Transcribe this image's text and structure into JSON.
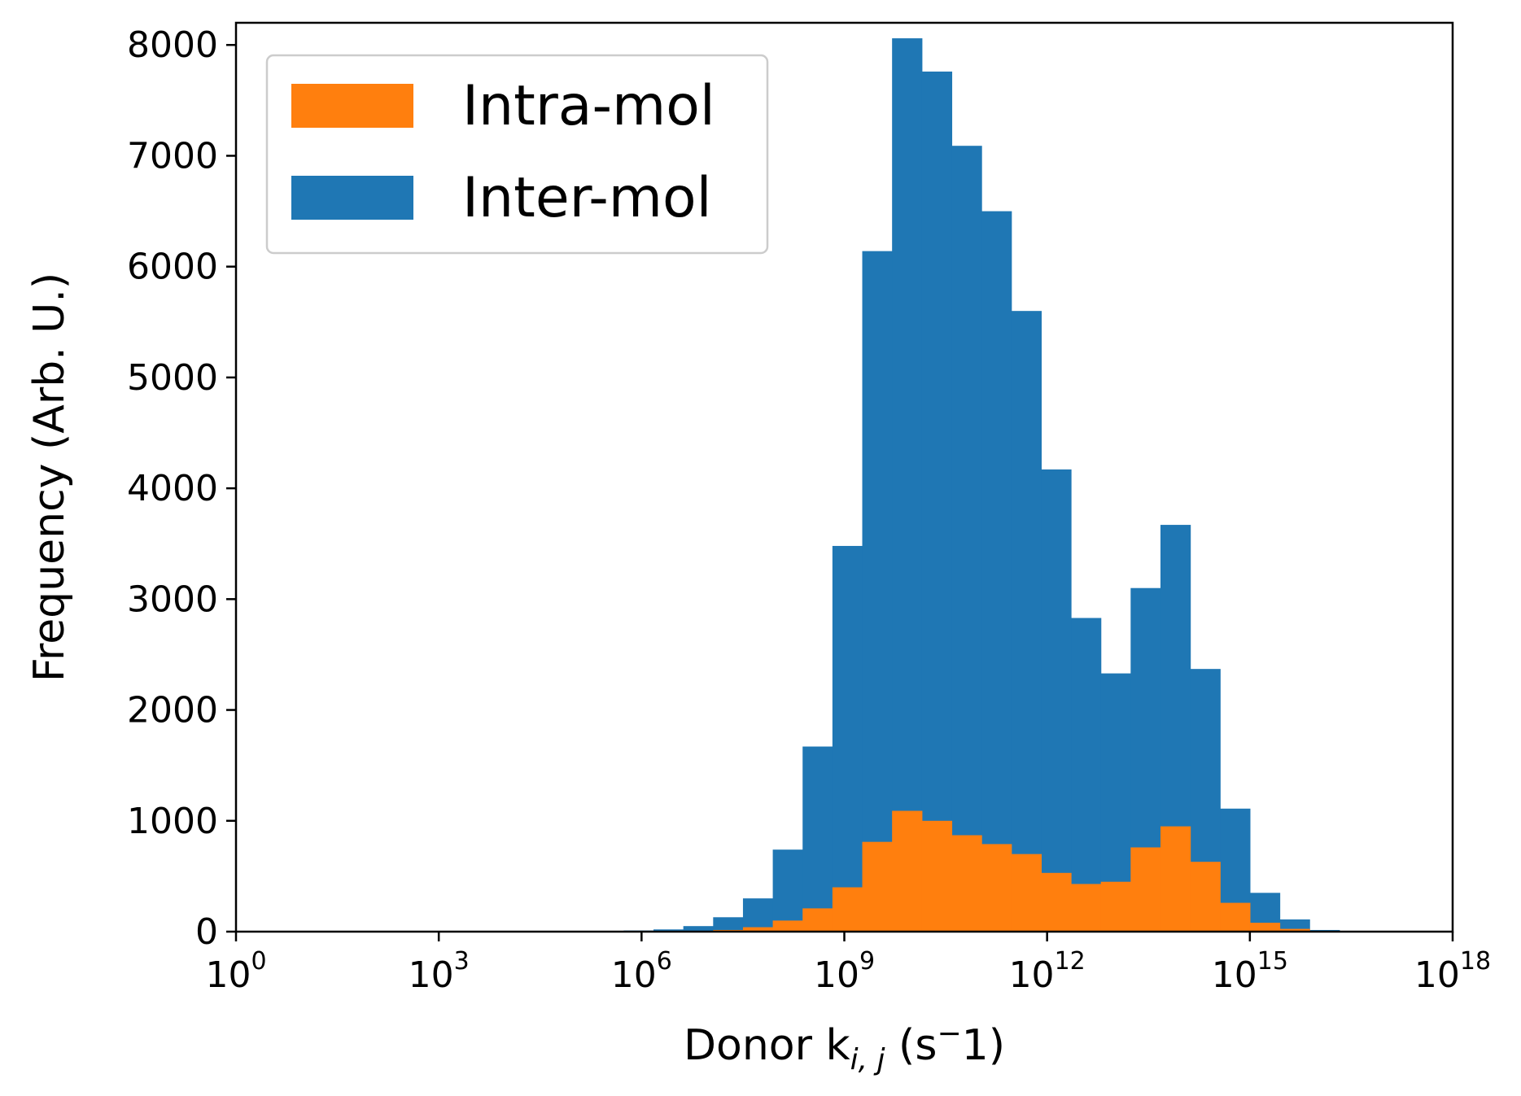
{
  "chart_data": {
    "type": "bar",
    "title": "",
    "xlabel": {
      "main": "Donor k",
      "sub": "i, j",
      "tail": " (s",
      "sup": "−",
      "end": "1)"
    },
    "ylabel": "Frequency (Arb. U.)",
    "xscale": "log",
    "xlim_exponent": [
      0,
      18
    ],
    "ylim": [
      0,
      8200
    ],
    "bin_width_exponent": 0.4412,
    "bin_start_exponent": 0,
    "x_ticks": [
      {
        "base": "10",
        "exp": "0"
      },
      {
        "base": "10",
        "exp": "3"
      },
      {
        "base": "10",
        "exp": "6"
      },
      {
        "base": "10",
        "exp": "9"
      },
      {
        "base": "10",
        "exp": "12"
      },
      {
        "base": "10",
        "exp": "15"
      },
      {
        "base": "10",
        "exp": "18"
      }
    ],
    "y_ticks": [
      "0",
      "1000",
      "2000",
      "3000",
      "4000",
      "5000",
      "6000",
      "7000",
      "8000"
    ],
    "legend_position": "top-left",
    "series": [
      {
        "name": "Inter-mol",
        "color": "#1f77b4",
        "values": [
          0,
          0,
          0,
          0,
          0,
          0,
          0,
          0,
          0,
          0,
          0,
          0,
          0,
          10,
          20,
          50,
          130,
          300,
          740,
          1670,
          3480,
          6140,
          8060,
          7760,
          7090,
          6500,
          5600,
          4170,
          2830,
          2330,
          3100,
          3670,
          2370,
          1110,
          350,
          110,
          15,
          5,
          0,
          0,
          0
        ]
      },
      {
        "name": "Intra-mol",
        "color": "#ff7f0e",
        "values": [
          0,
          0,
          0,
          0,
          0,
          0,
          0,
          0,
          0,
          0,
          0,
          0,
          0,
          0,
          0,
          5,
          15,
          40,
          100,
          210,
          400,
          810,
          1090,
          1000,
          870,
          790,
          700,
          530,
          430,
          450,
          760,
          950,
          630,
          260,
          80,
          25,
          0,
          0,
          0,
          0,
          0
        ]
      }
    ]
  }
}
